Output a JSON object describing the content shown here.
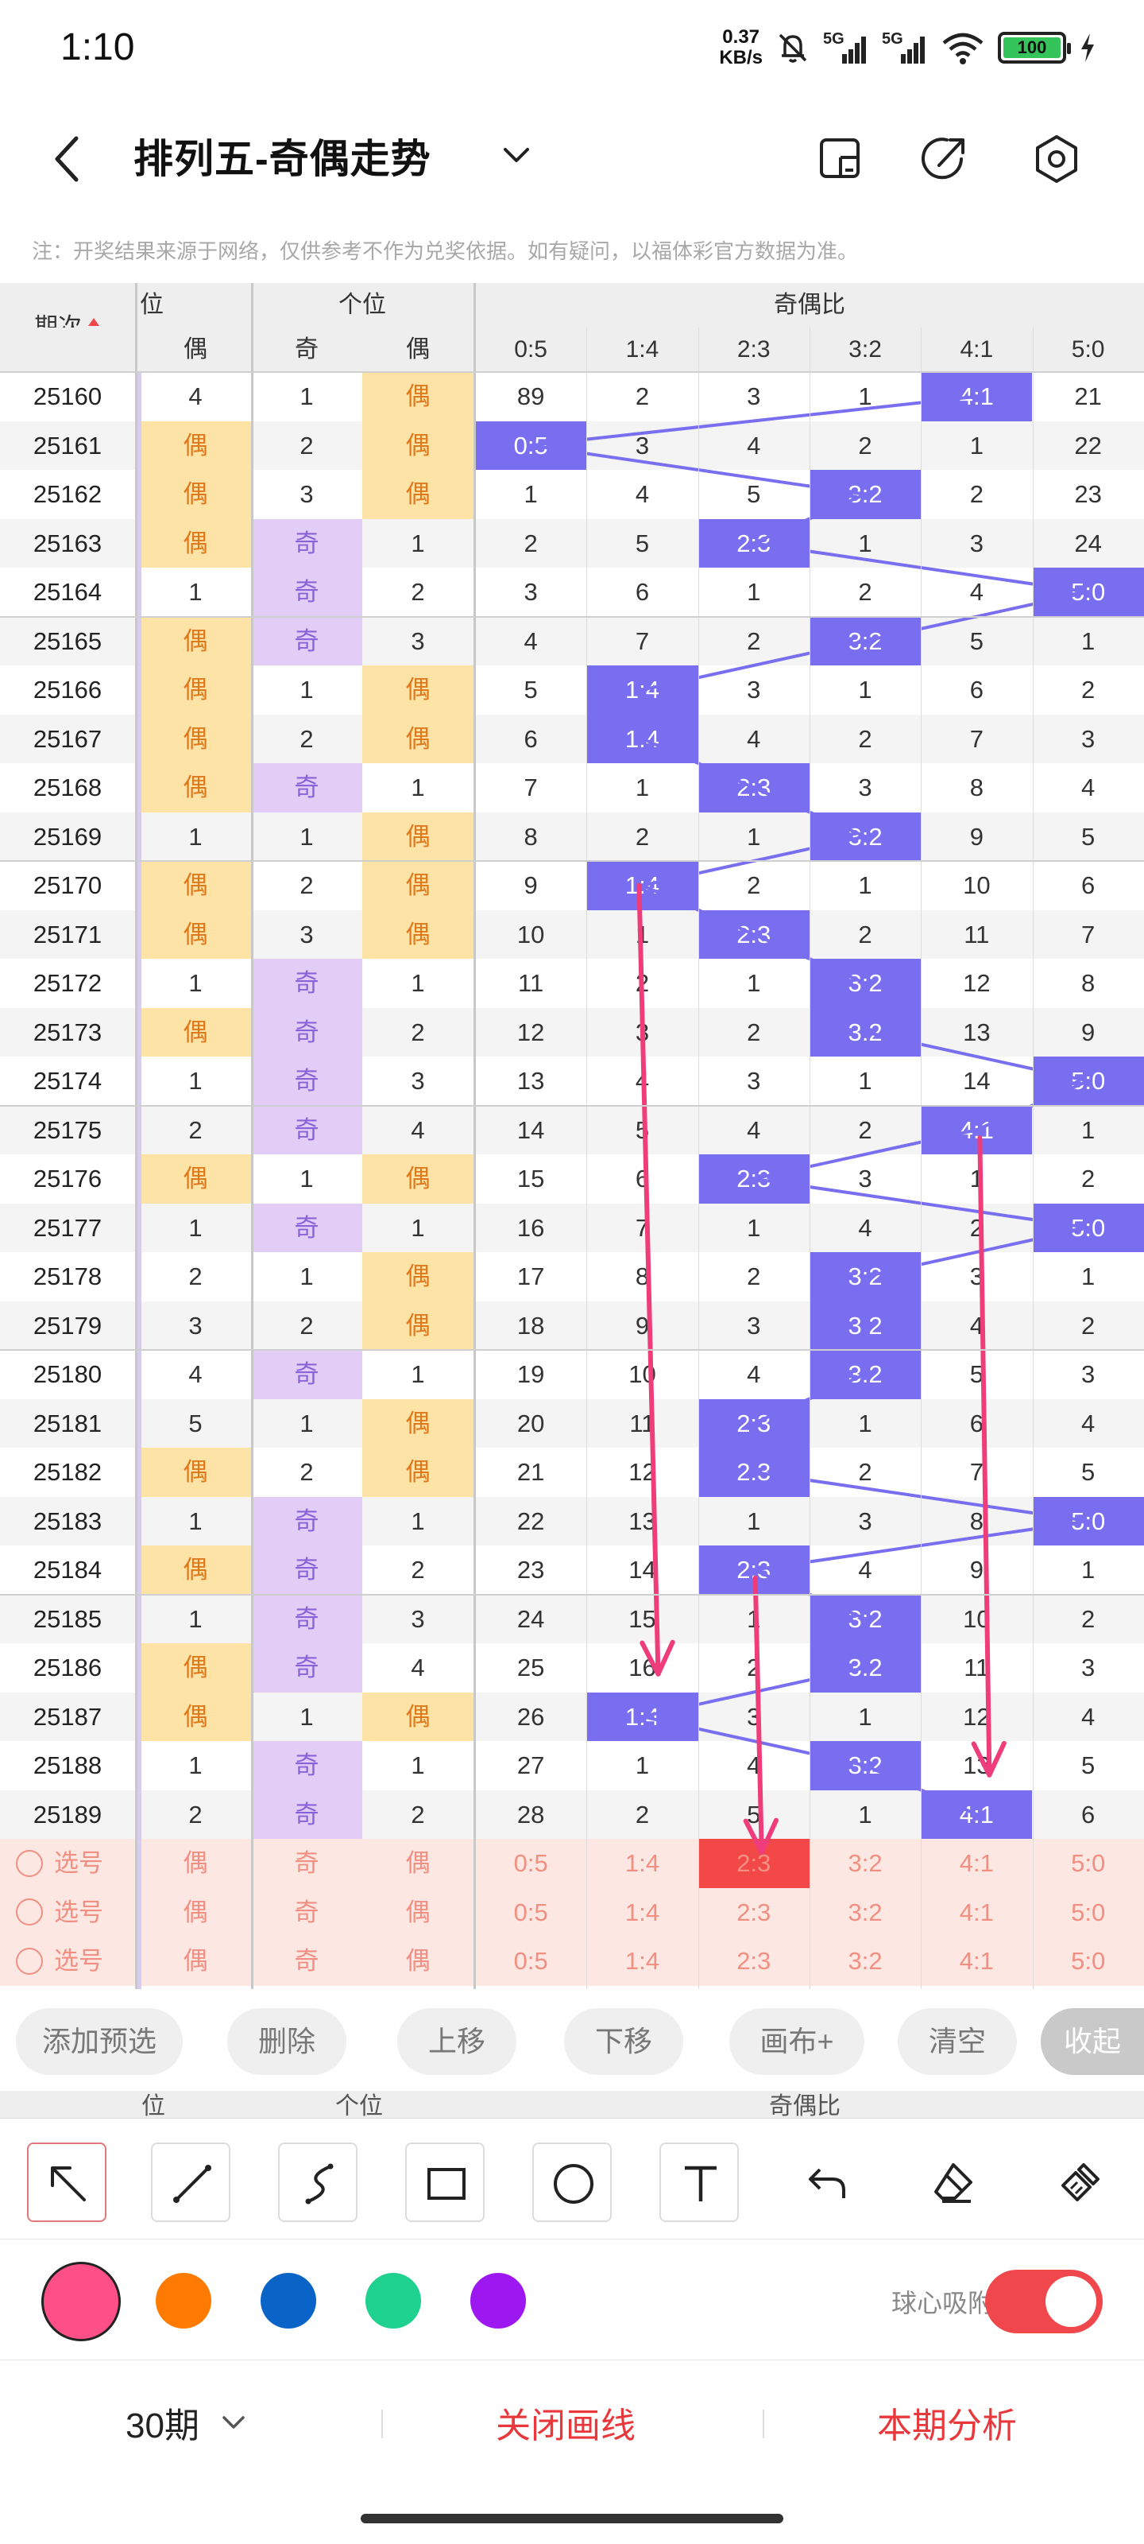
{
  "status_bar": {
    "time": "1:10",
    "speed_value": "0.37",
    "speed_unit": "KB/s",
    "net1": "5G",
    "net2": "5G",
    "battery": "100",
    "icons": [
      "mute-bell-icon",
      "signal-icon",
      "wifi-icon",
      "battery-icon",
      "charging-icon"
    ]
  },
  "header": {
    "title": "排列五-奇偶走势",
    "icons": [
      "back-icon",
      "dropdown-icon",
      "screen-icon",
      "share-icon",
      "settings-icon"
    ]
  },
  "note": "注：开奖结果来源于网络，仅供参考不作为兑奖依据。如有疑问，以福体彩官方数据为准。",
  "table": {
    "issue_header": "期次",
    "group_wei": "位",
    "group_gewei": "个位",
    "group_ratio": "奇偶比",
    "sub_wei": [
      "偶"
    ],
    "sub_gewei": [
      "奇",
      "偶"
    ],
    "ratio_columns": [
      "0:5",
      "1:4",
      "2:3",
      "3:2",
      "4:1",
      "5:0"
    ],
    "rows": [
      {
        "issue": "25160",
        "w": "4",
        "g1": "1",
        "g2": "偶",
        "r": [
          "89",
          "2",
          "3",
          "1",
          "4:1",
          "21"
        ]
      },
      {
        "issue": "25161",
        "w": "偶",
        "g1": "2",
        "g2": "偶",
        "r": [
          "0:5",
          "3",
          "4",
          "2",
          "1",
          "22"
        ]
      },
      {
        "issue": "25162",
        "w": "偶",
        "g1": "3",
        "g2": "偶",
        "r": [
          "1",
          "4",
          "5",
          "3:2",
          "2",
          "23"
        ]
      },
      {
        "issue": "25163",
        "w": "偶",
        "g1": "奇",
        "g2": "1",
        "r": [
          "2",
          "5",
          "2:3",
          "1",
          "3",
          "24"
        ]
      },
      {
        "issue": "25164",
        "w": "1",
        "g1": "奇",
        "g2": "2",
        "r": [
          "3",
          "6",
          "1",
          "2",
          "4",
          "5:0"
        ]
      },
      {
        "issue": "25165",
        "w": "偶",
        "g1": "奇",
        "g2": "3",
        "r": [
          "4",
          "7",
          "2",
          "3:2",
          "5",
          "1"
        ]
      },
      {
        "issue": "25166",
        "w": "偶",
        "g1": "1",
        "g2": "偶",
        "r": [
          "5",
          "1:4",
          "3",
          "1",
          "6",
          "2"
        ]
      },
      {
        "issue": "25167",
        "w": "偶",
        "g1": "2",
        "g2": "偶",
        "r": [
          "6",
          "1:4",
          "4",
          "2",
          "7",
          "3"
        ]
      },
      {
        "issue": "25168",
        "w": "偶",
        "g1": "奇",
        "g2": "1",
        "r": [
          "7",
          "1",
          "2:3",
          "3",
          "8",
          "4"
        ]
      },
      {
        "issue": "25169",
        "w": "1",
        "g1": "1",
        "g2": "偶",
        "r": [
          "8",
          "2",
          "1",
          "3:2",
          "9",
          "5"
        ]
      },
      {
        "issue": "25170",
        "w": "偶",
        "g1": "2",
        "g2": "偶",
        "r": [
          "9",
          "1:4",
          "2",
          "1",
          "10",
          "6"
        ]
      },
      {
        "issue": "25171",
        "w": "偶",
        "g1": "3",
        "g2": "偶",
        "r": [
          "10",
          "1",
          "2:3",
          "2",
          "11",
          "7"
        ]
      },
      {
        "issue": "25172",
        "w": "1",
        "g1": "奇",
        "g2": "1",
        "r": [
          "11",
          "2",
          "1",
          "3:2",
          "12",
          "8"
        ]
      },
      {
        "issue": "25173",
        "w": "偶",
        "g1": "奇",
        "g2": "2",
        "r": [
          "12",
          "3",
          "2",
          "3:2",
          "13",
          "9"
        ]
      },
      {
        "issue": "25174",
        "w": "1",
        "g1": "奇",
        "g2": "3",
        "r": [
          "13",
          "4",
          "3",
          "1",
          "14",
          "5:0"
        ]
      },
      {
        "issue": "25175",
        "w": "2",
        "g1": "奇",
        "g2": "4",
        "r": [
          "14",
          "5",
          "4",
          "2",
          "4:1",
          "1"
        ]
      },
      {
        "issue": "25176",
        "w": "偶",
        "g1": "1",
        "g2": "偶",
        "r": [
          "15",
          "6",
          "2:3",
          "3",
          "1",
          "2"
        ]
      },
      {
        "issue": "25177",
        "w": "1",
        "g1": "奇",
        "g2": "1",
        "r": [
          "16",
          "7",
          "1",
          "4",
          "2",
          "5:0"
        ]
      },
      {
        "issue": "25178",
        "w": "2",
        "g1": "1",
        "g2": "偶",
        "r": [
          "17",
          "8",
          "2",
          "3:2",
          "3",
          "1"
        ]
      },
      {
        "issue": "25179",
        "w": "3",
        "g1": "2",
        "g2": "偶",
        "r": [
          "18",
          "9",
          "3",
          "3:2",
          "4",
          "2"
        ]
      },
      {
        "issue": "25180",
        "w": "4",
        "g1": "奇",
        "g2": "1",
        "r": [
          "19",
          "10",
          "4",
          "3:2",
          "5",
          "3"
        ]
      },
      {
        "issue": "25181",
        "w": "5",
        "g1": "1",
        "g2": "偶",
        "r": [
          "20",
          "11",
          "2:3",
          "1",
          "6",
          "4"
        ]
      },
      {
        "issue": "25182",
        "w": "偶",
        "g1": "2",
        "g2": "偶",
        "r": [
          "21",
          "12",
          "2:3",
          "2",
          "7",
          "5"
        ]
      },
      {
        "issue": "25183",
        "w": "1",
        "g1": "奇",
        "g2": "1",
        "r": [
          "22",
          "13",
          "1",
          "3",
          "8",
          "5:0"
        ]
      },
      {
        "issue": "25184",
        "w": "偶",
        "g1": "奇",
        "g2": "2",
        "r": [
          "23",
          "14",
          "2:3",
          "4",
          "9",
          "1"
        ]
      },
      {
        "issue": "25185",
        "w": "1",
        "g1": "奇",
        "g2": "3",
        "r": [
          "24",
          "15",
          "1",
          "3:2",
          "10",
          "2"
        ]
      },
      {
        "issue": "25186",
        "w": "偶",
        "g1": "奇",
        "g2": "4",
        "r": [
          "25",
          "16",
          "2",
          "3:2",
          "11",
          "3"
        ]
      },
      {
        "issue": "25187",
        "w": "偶",
        "g1": "1",
        "g2": "偶",
        "r": [
          "26",
          "1:4",
          "3",
          "1",
          "12",
          "4"
        ]
      },
      {
        "issue": "25188",
        "w": "1",
        "g1": "奇",
        "g2": "1",
        "r": [
          "27",
          "1",
          "4",
          "3:2",
          "13",
          "5"
        ]
      },
      {
        "issue": "25189",
        "w": "2",
        "g1": "奇",
        "g2": "2",
        "r": [
          "28",
          "2",
          "5",
          "1",
          "4:1",
          "6"
        ]
      }
    ],
    "pick_rows": [
      {
        "label": "选号",
        "w": "偶",
        "g1": "奇",
        "g2": "偶",
        "r": [
          "0:5",
          "1:4",
          "2:3",
          "3:2",
          "4:1",
          "5:0"
        ],
        "selected_ratio": 2
      },
      {
        "label": "选号",
        "w": "偶",
        "g1": "奇",
        "g2": "偶",
        "r": [
          "0:5",
          "1:4",
          "2:3",
          "3:2",
          "4:1",
          "5:0"
        ],
        "selected_ratio": -1
      },
      {
        "label": "选号",
        "w": "偶",
        "g1": "奇",
        "g2": "偶",
        "r": [
          "0:5",
          "1:4",
          "2:3",
          "3:2",
          "4:1",
          "5:0"
        ],
        "selected_ratio": -1
      }
    ]
  },
  "actions": {
    "add_preselect": "添加预选",
    "delete": "删除",
    "move_up": "上移",
    "move_down": "下移",
    "canvas_plus": "画布+",
    "clear": "清空",
    "collapse": "收起"
  },
  "ghost_header": {
    "wei": "位",
    "gewei": "个位",
    "ratio": "奇偶比"
  },
  "tools": [
    "arrow-tool-icon",
    "line-tool-icon",
    "curve-tool-icon",
    "rectangle-tool-icon",
    "circle-tool-icon",
    "text-tool-icon",
    "undo-icon",
    "eraser-icon",
    "clear-brush-icon"
  ],
  "palette": {
    "colors": [
      "#ff4f87",
      "#ff7a00",
      "#0a64c8",
      "#1fd18f",
      "#9d18f0"
    ],
    "selected": 0,
    "ratio_highlight": "#7a6ef0",
    "line_color": "#7a6ef0",
    "arrow_color": "#ee3d7a"
  },
  "snap": {
    "label": "球心吸附",
    "enabled": true
  },
  "bottom": {
    "period": "30期",
    "close_lines": "关闭画线",
    "analysis": "本期分析"
  }
}
